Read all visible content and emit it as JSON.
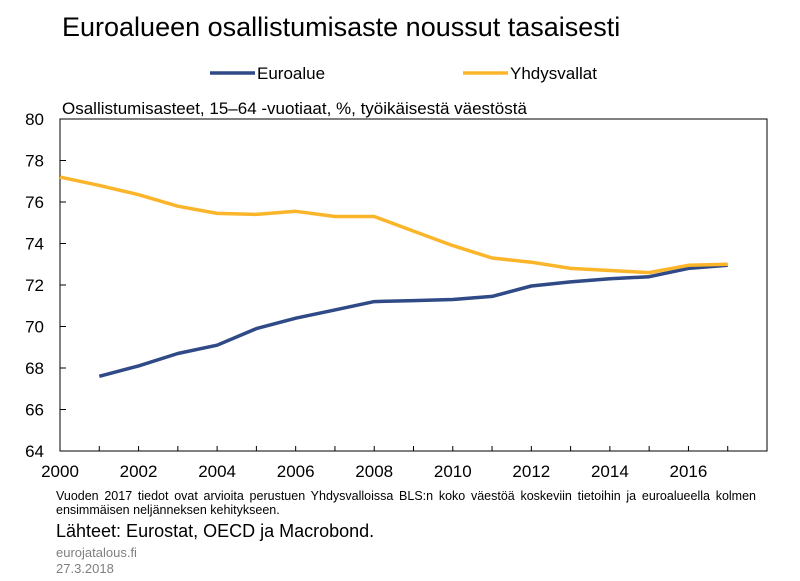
{
  "title": "Euroalueen osallistumisaste noussut tasaisesti",
  "note": "Vuoden 2017 tiedot ovat arvioita perustuen Yhdysvalloissa BLS:n koko väestöä koskeviin tietoihin ja euroalueella kolmen ensimmäisen neljänneksen kehitykseen.",
  "sources": "Lähteet: Eurostat, OECD ja Macrobond.",
  "site": "eurojatalous.fi",
  "date": "27.3.2018",
  "colors": {
    "euroalue": "#2f4a86",
    "yhdysvallat": "#fbb52a",
    "axis": "#000000"
  },
  "chart_data": {
    "type": "line",
    "title": "Euroalueen osallistumisaste noussut tasaisesti",
    "subtitle": "Osallistumisasteet, 15–64 -vuotiaat, %, työikäisestä väestöstä",
    "xlabel": "",
    "ylabel": "",
    "xlim": [
      2000,
      2018
    ],
    "ylim": [
      64,
      80
    ],
    "x_ticks": [
      2000,
      2002,
      2004,
      2006,
      2008,
      2010,
      2012,
      2014,
      2016
    ],
    "y_ticks": [
      64,
      66,
      68,
      70,
      72,
      74,
      76,
      78,
      80
    ],
    "grid": false,
    "legend_position": "top",
    "series": [
      {
        "name": "Euroalue",
        "color": "#2f4a86",
        "x": [
          2001,
          2002,
          2003,
          2004,
          2005,
          2006,
          2007,
          2008,
          2009,
          2010,
          2011,
          2012,
          2013,
          2014,
          2015,
          2016,
          2017
        ],
        "values": [
          67.6,
          68.1,
          68.7,
          69.1,
          69.9,
          70.4,
          70.8,
          71.2,
          71.25,
          71.3,
          71.45,
          71.95,
          72.15,
          72.3,
          72.4,
          72.8,
          72.95
        ]
      },
      {
        "name": "Yhdysvallat",
        "color": "#fbb52a",
        "x": [
          2000,
          2001,
          2002,
          2003,
          2004,
          2005,
          2006,
          2007,
          2008,
          2009,
          2010,
          2011,
          2012,
          2013,
          2014,
          2015,
          2016,
          2017
        ],
        "values": [
          77.2,
          76.8,
          76.35,
          75.8,
          75.45,
          75.4,
          75.55,
          75.3,
          75.3,
          74.6,
          73.9,
          73.3,
          73.1,
          72.8,
          72.7,
          72.6,
          72.95,
          73.0
        ]
      }
    ]
  }
}
